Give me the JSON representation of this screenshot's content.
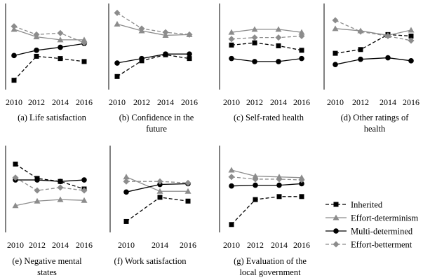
{
  "legend": [
    {
      "key": "inherited",
      "label": "Inherited"
    },
    {
      "key": "effort_determinism",
      "label": "Effort-determinism"
    },
    {
      "key": "multi_determined",
      "label": "Multi-determined"
    },
    {
      "key": "effort_betterment",
      "label": "Effort-betterment"
    }
  ],
  "styles": {
    "inherited": {
      "color": "#000000",
      "dash": "5,3",
      "marker": "square"
    },
    "effort_determinism": {
      "color": "#8c8c8c",
      "dash": "",
      "marker": "triangle"
    },
    "multi_determined": {
      "color": "#000000",
      "dash": "",
      "marker": "circle"
    },
    "effort_betterment": {
      "color": "#8c8c8c",
      "dash": "5,3",
      "marker": "diamond"
    }
  },
  "chart_data": [
    {
      "type": "line",
      "caption": [
        "(a) Life satisfaction"
      ],
      "x": [
        "2010",
        "2012",
        "2014",
        "2016"
      ],
      "ylim": [
        0,
        100
      ],
      "series": [
        {
          "key": "inherited",
          "name": "Inherited",
          "values": [
            5,
            37,
            34,
            30
          ]
        },
        {
          "key": "effort_determinism",
          "name": "Effort-determinism",
          "values": [
            73,
            63,
            59,
            59
          ]
        },
        {
          "key": "multi_determined",
          "name": "Multi-determined",
          "values": [
            38,
            45,
            49,
            54
          ]
        },
        {
          "key": "effort_betterment",
          "name": "Effort-betterment",
          "values": [
            77,
            66,
            68,
            55
          ]
        }
      ]
    },
    {
      "type": "line",
      "caption": [
        "(b) Confidence in the",
        "future"
      ],
      "x": [
        "2010",
        "2012",
        "2014",
        "2016"
      ],
      "ylim": [
        0,
        100
      ],
      "series": [
        {
          "key": "inherited",
          "name": "Inherited",
          "values": [
            10,
            31,
            39,
            34
          ]
        },
        {
          "key": "effort_determinism",
          "name": "Effort-determinism",
          "values": [
            80,
            71,
            65,
            66
          ]
        },
        {
          "key": "multi_determined",
          "name": "Multi-determined",
          "values": [
            28,
            34,
            40,
            40
          ]
        },
        {
          "key": "effort_betterment",
          "name": "Effort-betterment",
          "values": [
            95,
            74,
            69,
            66
          ]
        }
      ]
    },
    {
      "type": "line",
      "caption": [
        "(c) Self-rated health"
      ],
      "x": [
        "2010",
        "2012",
        "2014",
        "2016"
      ],
      "ylim": [
        0,
        100
      ],
      "series": [
        {
          "key": "inherited",
          "name": "Inherited",
          "values": [
            52,
            55,
            51,
            45
          ]
        },
        {
          "key": "effort_determinism",
          "name": "Effort-determinism",
          "values": [
            69,
            73,
            73,
            69
          ]
        },
        {
          "key": "multi_determined",
          "name": "Multi-determined",
          "values": [
            34,
            30,
            30,
            34
          ]
        },
        {
          "key": "effort_betterment",
          "name": "Effort-betterment",
          "values": [
            60,
            62,
            62,
            64
          ]
        }
      ]
    },
    {
      "type": "line",
      "caption": [
        "(d) Other ratings of",
        "health"
      ],
      "x": [
        "2010",
        "2012",
        "2014",
        "2016"
      ],
      "ylim": [
        0,
        100
      ],
      "series": [
        {
          "key": "inherited",
          "name": "Inherited",
          "values": [
            41,
            46,
            66,
            64
          ]
        },
        {
          "key": "effort_determinism",
          "name": "Effort-determinism",
          "values": [
            74,
            71,
            65,
            72
          ]
        },
        {
          "key": "multi_determined",
          "name": "Multi-determined",
          "values": [
            26,
            33,
            35,
            31
          ]
        },
        {
          "key": "effort_betterment",
          "name": "Effort-betterment",
          "values": [
            85,
            70,
            64,
            58
          ]
        }
      ]
    },
    {
      "type": "line",
      "caption": [
        "(e) Negative mental",
        "states"
      ],
      "x": [
        "2010",
        "2012",
        "2014",
        "2016"
      ],
      "ylim": [
        0,
        100
      ],
      "series": [
        {
          "key": "inherited",
          "name": "Inherited",
          "values": [
            83,
            64,
            60,
            50
          ]
        },
        {
          "key": "effort_determinism",
          "name": "Effort-determinism",
          "values": [
            28,
            34,
            36,
            35
          ]
        },
        {
          "key": "multi_determined",
          "name": "Multi-determined",
          "values": [
            62,
            62,
            60,
            62
          ]
        },
        {
          "key": "effort_betterment",
          "name": "Effort-betterment",
          "values": [
            65,
            48,
            52,
            48
          ]
        }
      ]
    },
    {
      "type": "line",
      "caption": [
        "(f) Work satisfaction"
      ],
      "x": [
        "2010",
        "2014",
        "2016"
      ],
      "ylim": [
        0,
        100
      ],
      "series": [
        {
          "key": "inherited",
          "name": "Inherited",
          "values": [
            7,
            39,
            34
          ]
        },
        {
          "key": "effort_determinism",
          "name": "Effort-determinism",
          "values": [
            66,
            47,
            47
          ]
        },
        {
          "key": "multi_determined",
          "name": "Multi-determined",
          "values": [
            46,
            56,
            57
          ]
        },
        {
          "key": "effort_betterment",
          "name": "Effort-betterment",
          "values": [
            60,
            60,
            58
          ]
        }
      ]
    },
    {
      "type": "line",
      "caption": [
        "(g) Evaluation of the",
        "local government"
      ],
      "x": [
        "2010",
        "2012",
        "2014",
        "2016"
      ],
      "ylim": [
        0,
        100
      ],
      "series": [
        {
          "key": "inherited",
          "name": "Inherited",
          "values": [
            3,
            36,
            40,
            40
          ]
        },
        {
          "key": "effort_determinism",
          "name": "Effort-determinism",
          "values": [
            75,
            67,
            66,
            65
          ]
        },
        {
          "key": "multi_determined",
          "name": "Multi-determined",
          "values": [
            54,
            55,
            55,
            57
          ]
        },
        {
          "key": "effort_betterment",
          "name": "Effort-betterment",
          "values": [
            66,
            63,
            63,
            62
          ]
        }
      ]
    }
  ]
}
